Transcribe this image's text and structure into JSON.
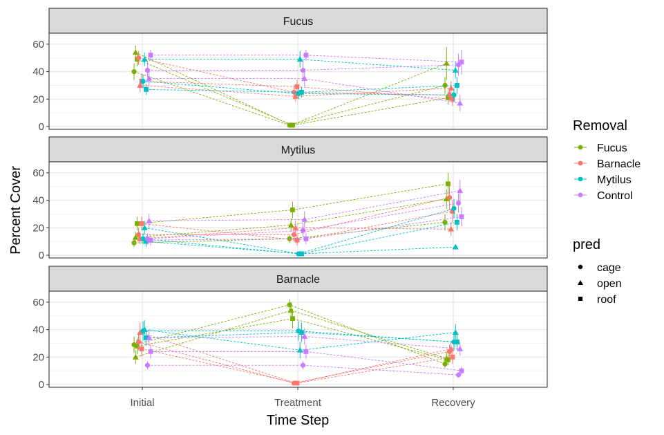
{
  "chart_data": {
    "type": "scatter",
    "xlabel": "Time Step",
    "ylabel": "Percent Cover",
    "categories": [
      "Initial",
      "Treatment",
      "Recovery"
    ],
    "ylim": [
      -2,
      68
    ],
    "yticks": [
      0,
      20,
      40,
      60
    ],
    "grid": true,
    "legend_placement": "right",
    "color_legend": {
      "title": "Removal",
      "items": [
        {
          "name": "Fucus",
          "color": "#7CAE00"
        },
        {
          "name": "Barnacle",
          "color": "#F8766D"
        },
        {
          "name": "Mytilus",
          "color": "#00BFC4"
        },
        {
          "name": "Control",
          "color": "#C77CFF"
        }
      ]
    },
    "shape_legend": {
      "title": "pred",
      "items": [
        {
          "name": "cage",
          "shape": "circle"
        },
        {
          "name": "open",
          "shape": "triangle"
        },
        {
          "name": "roof",
          "shape": "square"
        }
      ]
    },
    "panels": [
      {
        "strip": "Fucus",
        "series": [
          {
            "removal": "Fucus",
            "pred": "cage",
            "values": [
              40,
              1,
              30
            ],
            "err": [
              6,
              0.5,
              6
            ]
          },
          {
            "removal": "Fucus",
            "pred": "open",
            "values": [
              54,
              1,
              46
            ],
            "err": [
              5,
              0.5,
              12
            ]
          },
          {
            "removal": "Fucus",
            "pred": "roof",
            "values": [
              49,
              1,
              21
            ],
            "err": [
              5,
              0.5,
              5
            ]
          },
          {
            "removal": "Barnacle",
            "pred": "cage",
            "values": [
              50,
              25,
              23
            ],
            "err": [
              5,
              5,
              4
            ]
          },
          {
            "removal": "Barnacle",
            "pred": "open",
            "values": [
              30,
              22,
              28
            ],
            "err": [
              5,
              4,
              5
            ]
          },
          {
            "removal": "Barnacle",
            "pred": "roof",
            "values": [
              33,
              29,
              20
            ],
            "err": [
              5,
              5,
              5
            ]
          },
          {
            "removal": "Mytilus",
            "pred": "cage",
            "values": [
              33,
              24,
              23
            ],
            "err": [
              5,
              4,
              5
            ]
          },
          {
            "removal": "Mytilus",
            "pred": "open",
            "values": [
              49,
              49,
              41
            ],
            "err": [
              5,
              6,
              6
            ]
          },
          {
            "removal": "Mytilus",
            "pred": "roof",
            "values": [
              27,
              25,
              30
            ],
            "err": [
              4,
              4,
              6
            ]
          },
          {
            "removal": "Control",
            "pred": "cage",
            "values": [
              41,
              41,
              45
            ],
            "err": [
              7,
              8,
              8
            ]
          },
          {
            "removal": "Control",
            "pred": "open",
            "values": [
              35,
              35,
              17
            ],
            "err": [
              6,
              6,
              6
            ]
          },
          {
            "removal": "Control",
            "pred": "roof",
            "values": [
              52,
              52,
              47
            ],
            "err": [
              4,
              4,
              9
            ]
          }
        ]
      },
      {
        "strip": "Mytilus",
        "series": [
          {
            "removal": "Fucus",
            "pred": "cage",
            "values": [
              9,
              12,
              24
            ],
            "err": [
              3,
              3,
              6
            ]
          },
          {
            "removal": "Fucus",
            "pred": "open",
            "values": [
              13,
              22,
              41
            ],
            "err": [
              4,
              5,
              7
            ]
          },
          {
            "removal": "Fucus",
            "pred": "roof",
            "values": [
              23,
              33,
              52
            ],
            "err": [
              5,
              6,
              8
            ]
          },
          {
            "removal": "Barnacle",
            "pred": "cage",
            "values": [
              15,
              15,
              42
            ],
            "err": [
              5,
              5,
              9
            ]
          },
          {
            "removal": "Barnacle",
            "pred": "open",
            "values": [
              12,
              20,
              19
            ],
            "err": [
              4,
              5,
              5
            ]
          },
          {
            "removal": "Barnacle",
            "pred": "roof",
            "values": [
              23,
              11,
              32
            ],
            "err": [
              5,
              4,
              8
            ]
          },
          {
            "removal": "Mytilus",
            "pred": "cage",
            "values": [
              12,
              1,
              34
            ],
            "err": [
              4,
              0.5,
              7
            ]
          },
          {
            "removal": "Mytilus",
            "pred": "open",
            "values": [
              20,
              1,
              6
            ],
            "err": [
              5,
              0.5,
              2
            ]
          },
          {
            "removal": "Mytilus",
            "pred": "roof",
            "values": [
              10,
              1,
              24
            ],
            "err": [
              4,
              0.5,
              6
            ]
          },
          {
            "removal": "Control",
            "pred": "cage",
            "values": [
              12,
              18,
              38
            ],
            "err": [
              4,
              5,
              7
            ]
          },
          {
            "removal": "Control",
            "pred": "open",
            "values": [
              25,
              26,
              47
            ],
            "err": [
              5,
              6,
              8
            ]
          },
          {
            "removal": "Control",
            "pred": "roof",
            "values": [
              11,
              12,
              28
            ],
            "err": [
              4,
              4,
              7
            ]
          }
        ]
      },
      {
        "strip": "Barnacle",
        "series": [
          {
            "removal": "Fucus",
            "pred": "cage",
            "values": [
              29,
              58,
              15
            ],
            "err": [
              6,
              4,
              3
            ]
          },
          {
            "removal": "Fucus",
            "pred": "open",
            "values": [
              20,
              54,
              19
            ],
            "err": [
              5,
              6,
              5
            ]
          },
          {
            "removal": "Fucus",
            "pred": "roof",
            "values": [
              28,
              48,
              18
            ],
            "err": [
              6,
              7,
              4
            ]
          },
          {
            "removal": "Barnacle",
            "pred": "cage",
            "values": [
              31,
              1,
              24
            ],
            "err": [
              6,
              0.5,
              5
            ]
          },
          {
            "removal": "Barnacle",
            "pred": "open",
            "values": [
              38,
              1,
              26
            ],
            "err": [
              7,
              0.5,
              5
            ]
          },
          {
            "removal": "Barnacle",
            "pred": "roof",
            "values": [
              26,
              1,
              20
            ],
            "err": [
              6,
              0.5,
              5
            ]
          },
          {
            "removal": "Mytilus",
            "pred": "cage",
            "values": [
              39,
              39,
              31
            ],
            "err": [
              7,
              7,
              6
            ]
          },
          {
            "removal": "Mytilus",
            "pred": "open",
            "values": [
              40,
              25,
              38
            ],
            "err": [
              7,
              6,
              6
            ]
          },
          {
            "removal": "Mytilus",
            "pred": "roof",
            "values": [
              34,
              38,
              31
            ],
            "err": [
              6,
              7,
              6
            ]
          },
          {
            "removal": "Control",
            "pred": "cage",
            "values": [
              14,
              14,
              7
            ],
            "err": [
              3,
              3,
              2
            ]
          },
          {
            "removal": "Control",
            "pred": "open",
            "values": [
              34,
              35,
              26
            ],
            "err": [
              6,
              6,
              5
            ]
          },
          {
            "removal": "Control",
            "pred": "roof",
            "values": [
              24,
              24,
              10
            ],
            "err": [
              5,
              5,
              3
            ]
          }
        ]
      }
    ]
  }
}
